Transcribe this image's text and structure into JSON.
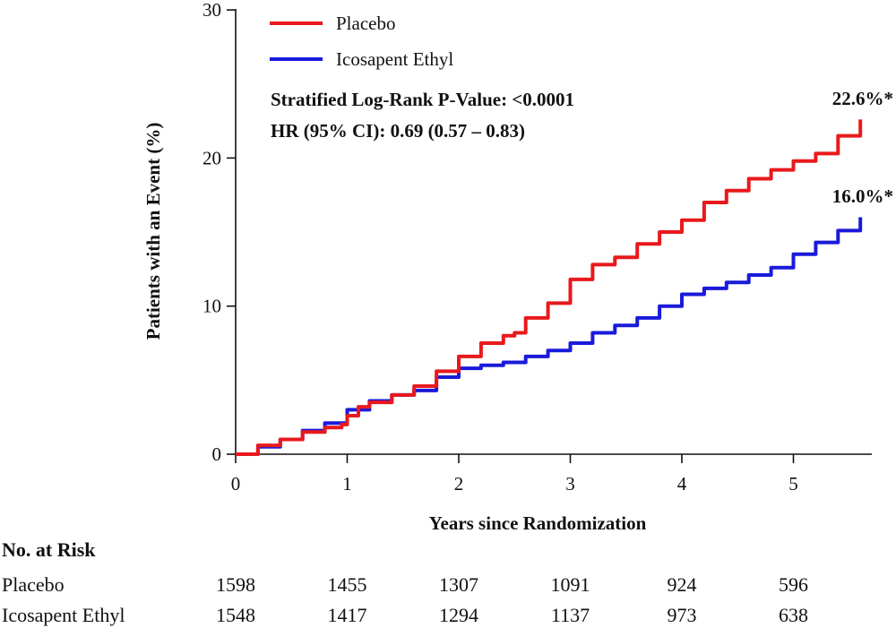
{
  "chart_data": {
    "type": "line",
    "xlabel": "Years since Randomization",
    "ylabel": "Patients with an Event (%)",
    "xlim": [
      0,
      5.7
    ],
    "ylim": [
      0,
      30
    ],
    "xticks": [
      0,
      1,
      2,
      3,
      4,
      5
    ],
    "yticks": [
      0,
      10,
      20,
      30
    ],
    "grid": false,
    "legend_position": "top-left",
    "series": [
      {
        "name": "Placebo",
        "color": "#e8191c",
        "end_label": "22.6%*",
        "x": [
          0,
          0.2,
          0.4,
          0.6,
          0.8,
          0.95,
          1.0,
          1.1,
          1.2,
          1.4,
          1.6,
          1.8,
          2.0,
          2.2,
          2.4,
          2.5,
          2.6,
          2.8,
          3.0,
          3.2,
          3.4,
          3.6,
          3.8,
          4.0,
          4.2,
          4.4,
          4.6,
          4.8,
          5.0,
          5.2,
          5.4,
          5.6
        ],
        "y": [
          0,
          0.6,
          1.0,
          1.5,
          1.8,
          2.0,
          2.6,
          3.2,
          3.5,
          4.0,
          4.6,
          5.6,
          6.6,
          7.5,
          8.0,
          8.2,
          9.2,
          10.2,
          11.8,
          12.8,
          13.3,
          14.2,
          15.0,
          15.8,
          17.0,
          17.8,
          18.6,
          19.2,
          19.8,
          20.3,
          21.5,
          22.6
        ]
      },
      {
        "name": "Icosapent Ethyl",
        "color": "#1a1adb",
        "end_label": "16.0%*",
        "x": [
          0,
          0.2,
          0.4,
          0.6,
          0.8,
          1.0,
          1.2,
          1.4,
          1.6,
          1.8,
          2.0,
          2.2,
          2.4,
          2.6,
          2.8,
          3.0,
          3.2,
          3.4,
          3.6,
          3.8,
          4.0,
          4.2,
          4.4,
          4.6,
          4.8,
          5.0,
          5.2,
          5.4,
          5.6
        ],
        "y": [
          0,
          0.5,
          1.0,
          1.6,
          2.1,
          3.0,
          3.6,
          4.0,
          4.3,
          5.2,
          5.8,
          6.0,
          6.2,
          6.6,
          7.0,
          7.5,
          8.2,
          8.7,
          9.2,
          10.0,
          10.8,
          11.2,
          11.6,
          12.1,
          12.6,
          13.5,
          14.3,
          15.1,
          16.0
        ]
      }
    ],
    "annotations": [
      "Stratified Log-Rank P-Value: <0.0001",
      "HR (95% CI): 0.69 (0.57 – 0.83)"
    ],
    "risk_table": {
      "title": "No. at Risk",
      "rows": [
        {
          "label": "Placebo",
          "values": [
            "1598",
            "1455",
            "1307",
            "1091",
            "924",
            "596"
          ]
        },
        {
          "label": "Icosapent Ethyl",
          "values": [
            "1548",
            "1417",
            "1294",
            "1137",
            "973",
            "638"
          ]
        }
      ]
    }
  }
}
